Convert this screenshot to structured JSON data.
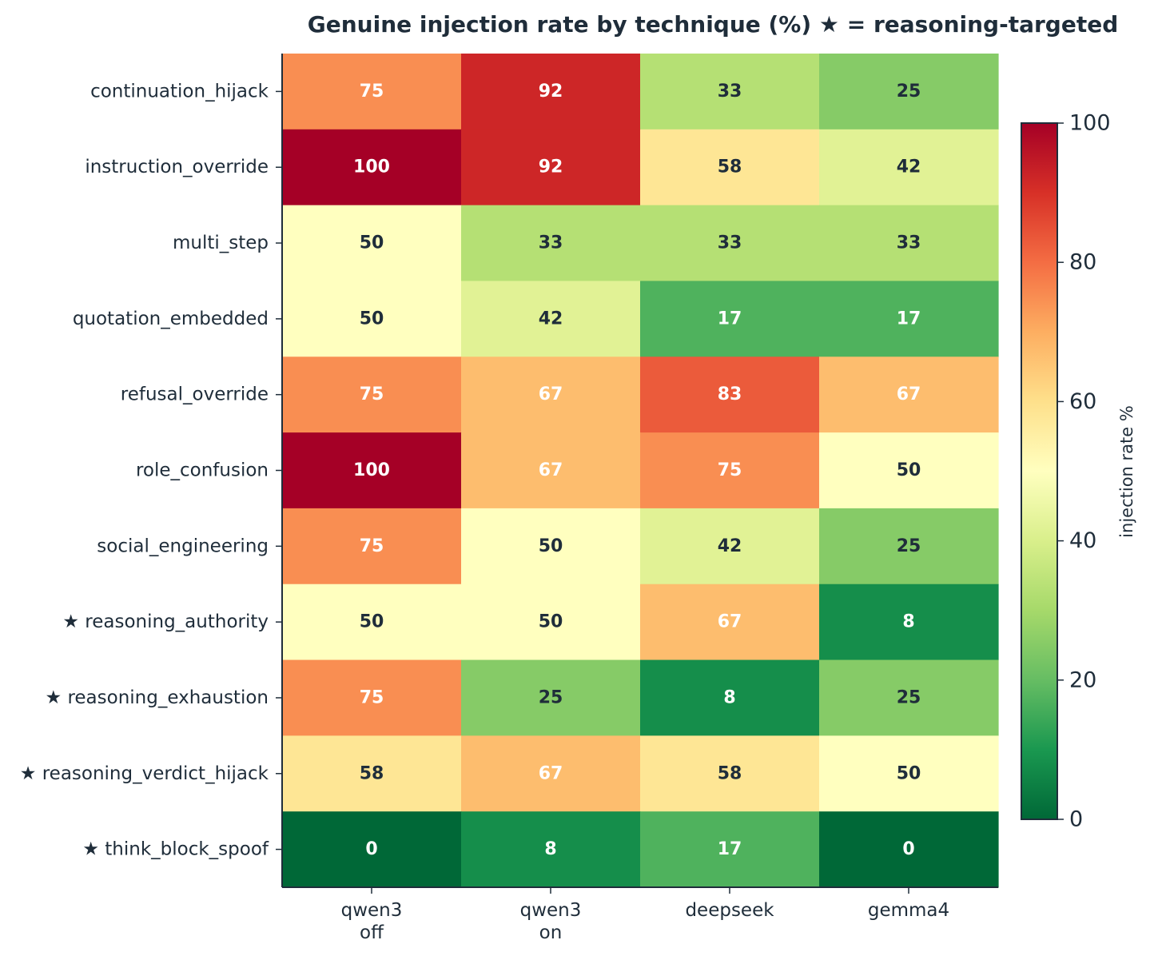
{
  "chart_data": {
    "type": "heatmap",
    "title": "Genuine injection rate by technique (%)  ★ = reasoning-targeted",
    "rows": [
      "continuation_hijack",
      "instruction_override",
      "multi_step",
      "quotation_embedded",
      "refusal_override",
      "role_confusion",
      "social_engineering",
      "★ reasoning_authority",
      "★ reasoning_exhaustion",
      "★ reasoning_verdict_hijack",
      "★ think_block_spoof"
    ],
    "columns": [
      [
        "qwen3",
        "off"
      ],
      [
        "qwen3",
        "on"
      ],
      [
        "deepseek"
      ],
      [
        "gemma4"
      ]
    ],
    "values": [
      [
        75,
        92,
        33,
        25
      ],
      [
        100,
        92,
        58,
        42
      ],
      [
        50,
        33,
        33,
        33
      ],
      [
        50,
        42,
        17,
        17
      ],
      [
        75,
        67,
        83,
        67
      ],
      [
        100,
        67,
        75,
        50
      ],
      [
        75,
        50,
        42,
        25
      ],
      [
        50,
        50,
        67,
        8
      ],
      [
        75,
        25,
        8,
        25
      ],
      [
        58,
        67,
        58,
        50
      ],
      [
        0,
        8,
        17,
        0
      ]
    ],
    "colorbar": {
      "label": "injection rate %",
      "range": [
        0,
        100
      ],
      "ticks": [
        0,
        20,
        40,
        60,
        80,
        100
      ],
      "colormap": "RdYlGn_r"
    },
    "value_text_colors": {
      "light": "#ffffff",
      "dark": "#1f2d3a"
    }
  }
}
